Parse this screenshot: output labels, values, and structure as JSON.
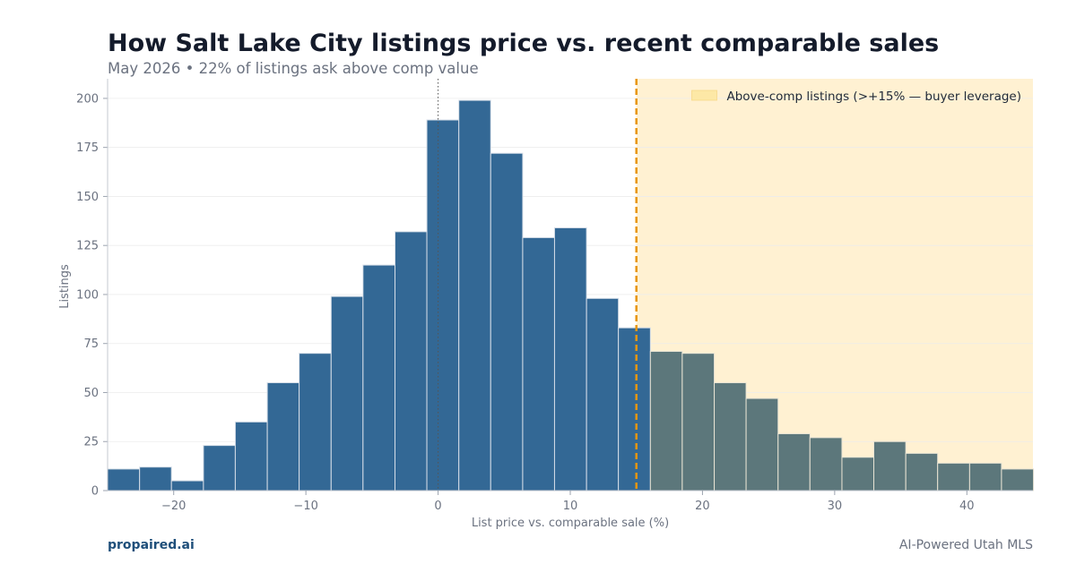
{
  "header": {
    "title": "How Salt Lake City listings price vs. recent comparable sales",
    "subtitle": "May 2026 • 22% of listings ask above comp value"
  },
  "footer": {
    "brand": "propaired.ai",
    "tagline": "AI-Powered Utah MLS"
  },
  "colors": {
    "below_bar": "#336895",
    "above_bar": "#5c777b",
    "highlight_region": "#fff1d2",
    "threshold_line": "#e8960f",
    "grid": "#ececec",
    "axis_text": "#6b7280"
  },
  "chart_data": {
    "type": "bar",
    "subtype": "histogram",
    "xlabel": "List price vs. comparable sale (%)",
    "ylabel": "Listings",
    "xlim": [
      -25,
      45
    ],
    "ylim": [
      0,
      210
    ],
    "x_ticks": [
      -20,
      -10,
      0,
      10,
      20,
      30,
      40
    ],
    "x_tick_labels": [
      "−20",
      "−10",
      "0",
      "10",
      "20",
      "30",
      "40"
    ],
    "y_ticks": [
      0,
      25,
      50,
      75,
      100,
      125,
      150,
      175,
      200
    ],
    "y_tick_labels": [
      "0",
      "25",
      "50",
      "75",
      "100",
      "125",
      "150",
      "175",
      "200"
    ],
    "grid": "horizontal",
    "bin_edges": [
      -25,
      -22.58,
      -20.17,
      -17.75,
      -15.34,
      -12.92,
      -10.51,
      -8.09,
      -5.68,
      -3.26,
      -0.85,
      1.57,
      3.98,
      6.4,
      8.81,
      11.23,
      13.64,
      16.06,
      18.47,
      20.89,
      23.3,
      25.72,
      28.13,
      30.55,
      32.96,
      35.38,
      37.79,
      40.21,
      42.62,
      45.04
    ],
    "counts": [
      11,
      12,
      5,
      23,
      35,
      55,
      70,
      99,
      115,
      132,
      189,
      199,
      172,
      129,
      134,
      98,
      83,
      71,
      70,
      55,
      47,
      29,
      27,
      17,
      25,
      19,
      14,
      14,
      11
    ],
    "zero_line": 0,
    "threshold": 15,
    "highlight_from": 15,
    "legend": {
      "position": "top-right",
      "label": "Above-comp listings (>+15% — buyer leverage)"
    }
  }
}
